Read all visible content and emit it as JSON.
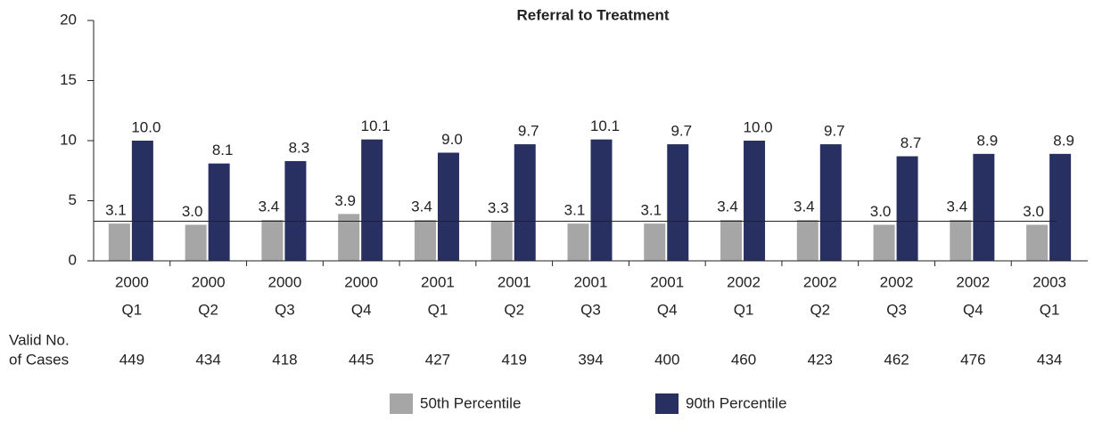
{
  "chart_data": {
    "type": "bar",
    "title": "Referral to Treatment",
    "categories": [
      [
        "2000",
        "Q1"
      ],
      [
        "2000",
        "Q2"
      ],
      [
        "2000",
        "Q3"
      ],
      [
        "2000",
        "Q4"
      ],
      [
        "2001",
        "Q1"
      ],
      [
        "2001",
        "Q2"
      ],
      [
        "2001",
        "Q3"
      ],
      [
        "2001",
        "Q4"
      ],
      [
        "2002",
        "Q1"
      ],
      [
        "2002",
        "Q2"
      ],
      [
        "2002",
        "Q3"
      ],
      [
        "2002",
        "Q4"
      ],
      [
        "2003",
        "Q1"
      ]
    ],
    "series": [
      {
        "name": "50th Percentile",
        "color": "#a6a6a6",
        "values": [
          3.1,
          3.0,
          3.4,
          3.9,
          3.4,
          3.3,
          3.1,
          3.1,
          3.4,
          3.4,
          3.0,
          3.4,
          3.0
        ],
        "value_labels": [
          "3.1",
          "3.0",
          "3.4",
          "3.9",
          "3.4",
          "3.3",
          "3.1",
          "3.1",
          "3.4",
          "3.4",
          "3.0",
          "3.4",
          "3.0"
        ]
      },
      {
        "name": "90th Percentile",
        "color": "#283061",
        "values": [
          10.0,
          8.1,
          8.3,
          10.1,
          9.0,
          9.7,
          10.1,
          9.7,
          10.0,
          9.7,
          8.7,
          8.9,
          8.9
        ],
        "value_labels": [
          "10.0",
          "8.1",
          "8.3",
          "10.1",
          "9.0",
          "9.7",
          "10.1",
          "9.7",
          "10.0",
          "9.7",
          "8.7",
          "8.9",
          "8.9"
        ]
      }
    ],
    "reference_line": 3.3,
    "cases_label": [
      "Valid No.",
      "of Cases"
    ],
    "cases": [
      449,
      434,
      418,
      445,
      427,
      419,
      394,
      400,
      460,
      423,
      462,
      476,
      434
    ],
    "ylim": [
      0,
      20
    ],
    "yticks": [
      0,
      5,
      10,
      15,
      20
    ]
  }
}
